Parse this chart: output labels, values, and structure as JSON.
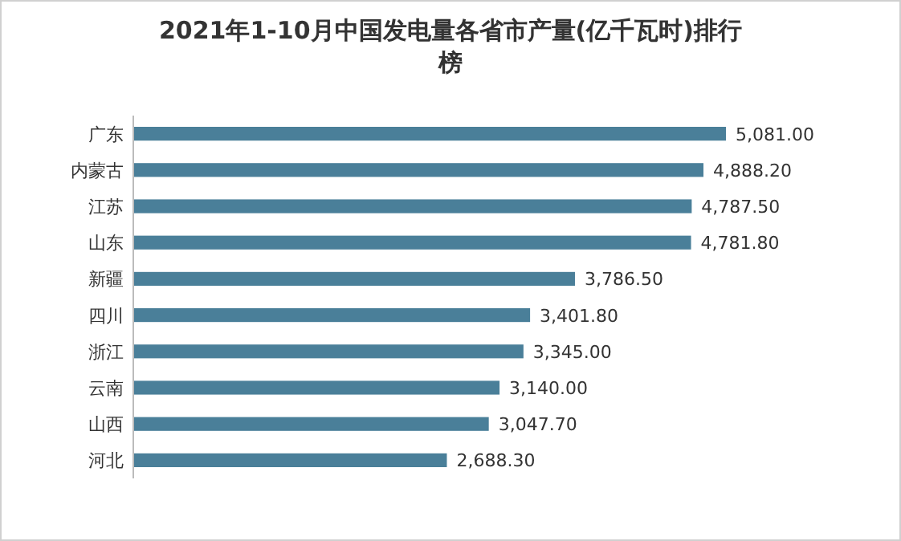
{
  "chart_data": {
    "type": "bar",
    "orientation": "horizontal",
    "title": "2021年1-10月中国发电量各省市产量(亿千瓦时)排行榜",
    "categories": [
      "广东",
      "内蒙古",
      "江苏",
      "山东",
      "新疆",
      "四川",
      "浙江",
      "云南",
      "山西",
      "河北"
    ],
    "values": [
      5081.0,
      4888.2,
      4787.5,
      4781.8,
      3786.5,
      3401.8,
      3345.0,
      3140.0,
      3047.7,
      2688.3
    ],
    "value_labels": [
      "5,081.00",
      "4,888.20",
      "4,787.50",
      "4,781.80",
      "3,786.50",
      "3,401.80",
      "3,345.00",
      "3,140.00",
      "3,047.70",
      "2,688.30"
    ],
    "color": "#4a7f99"
  }
}
